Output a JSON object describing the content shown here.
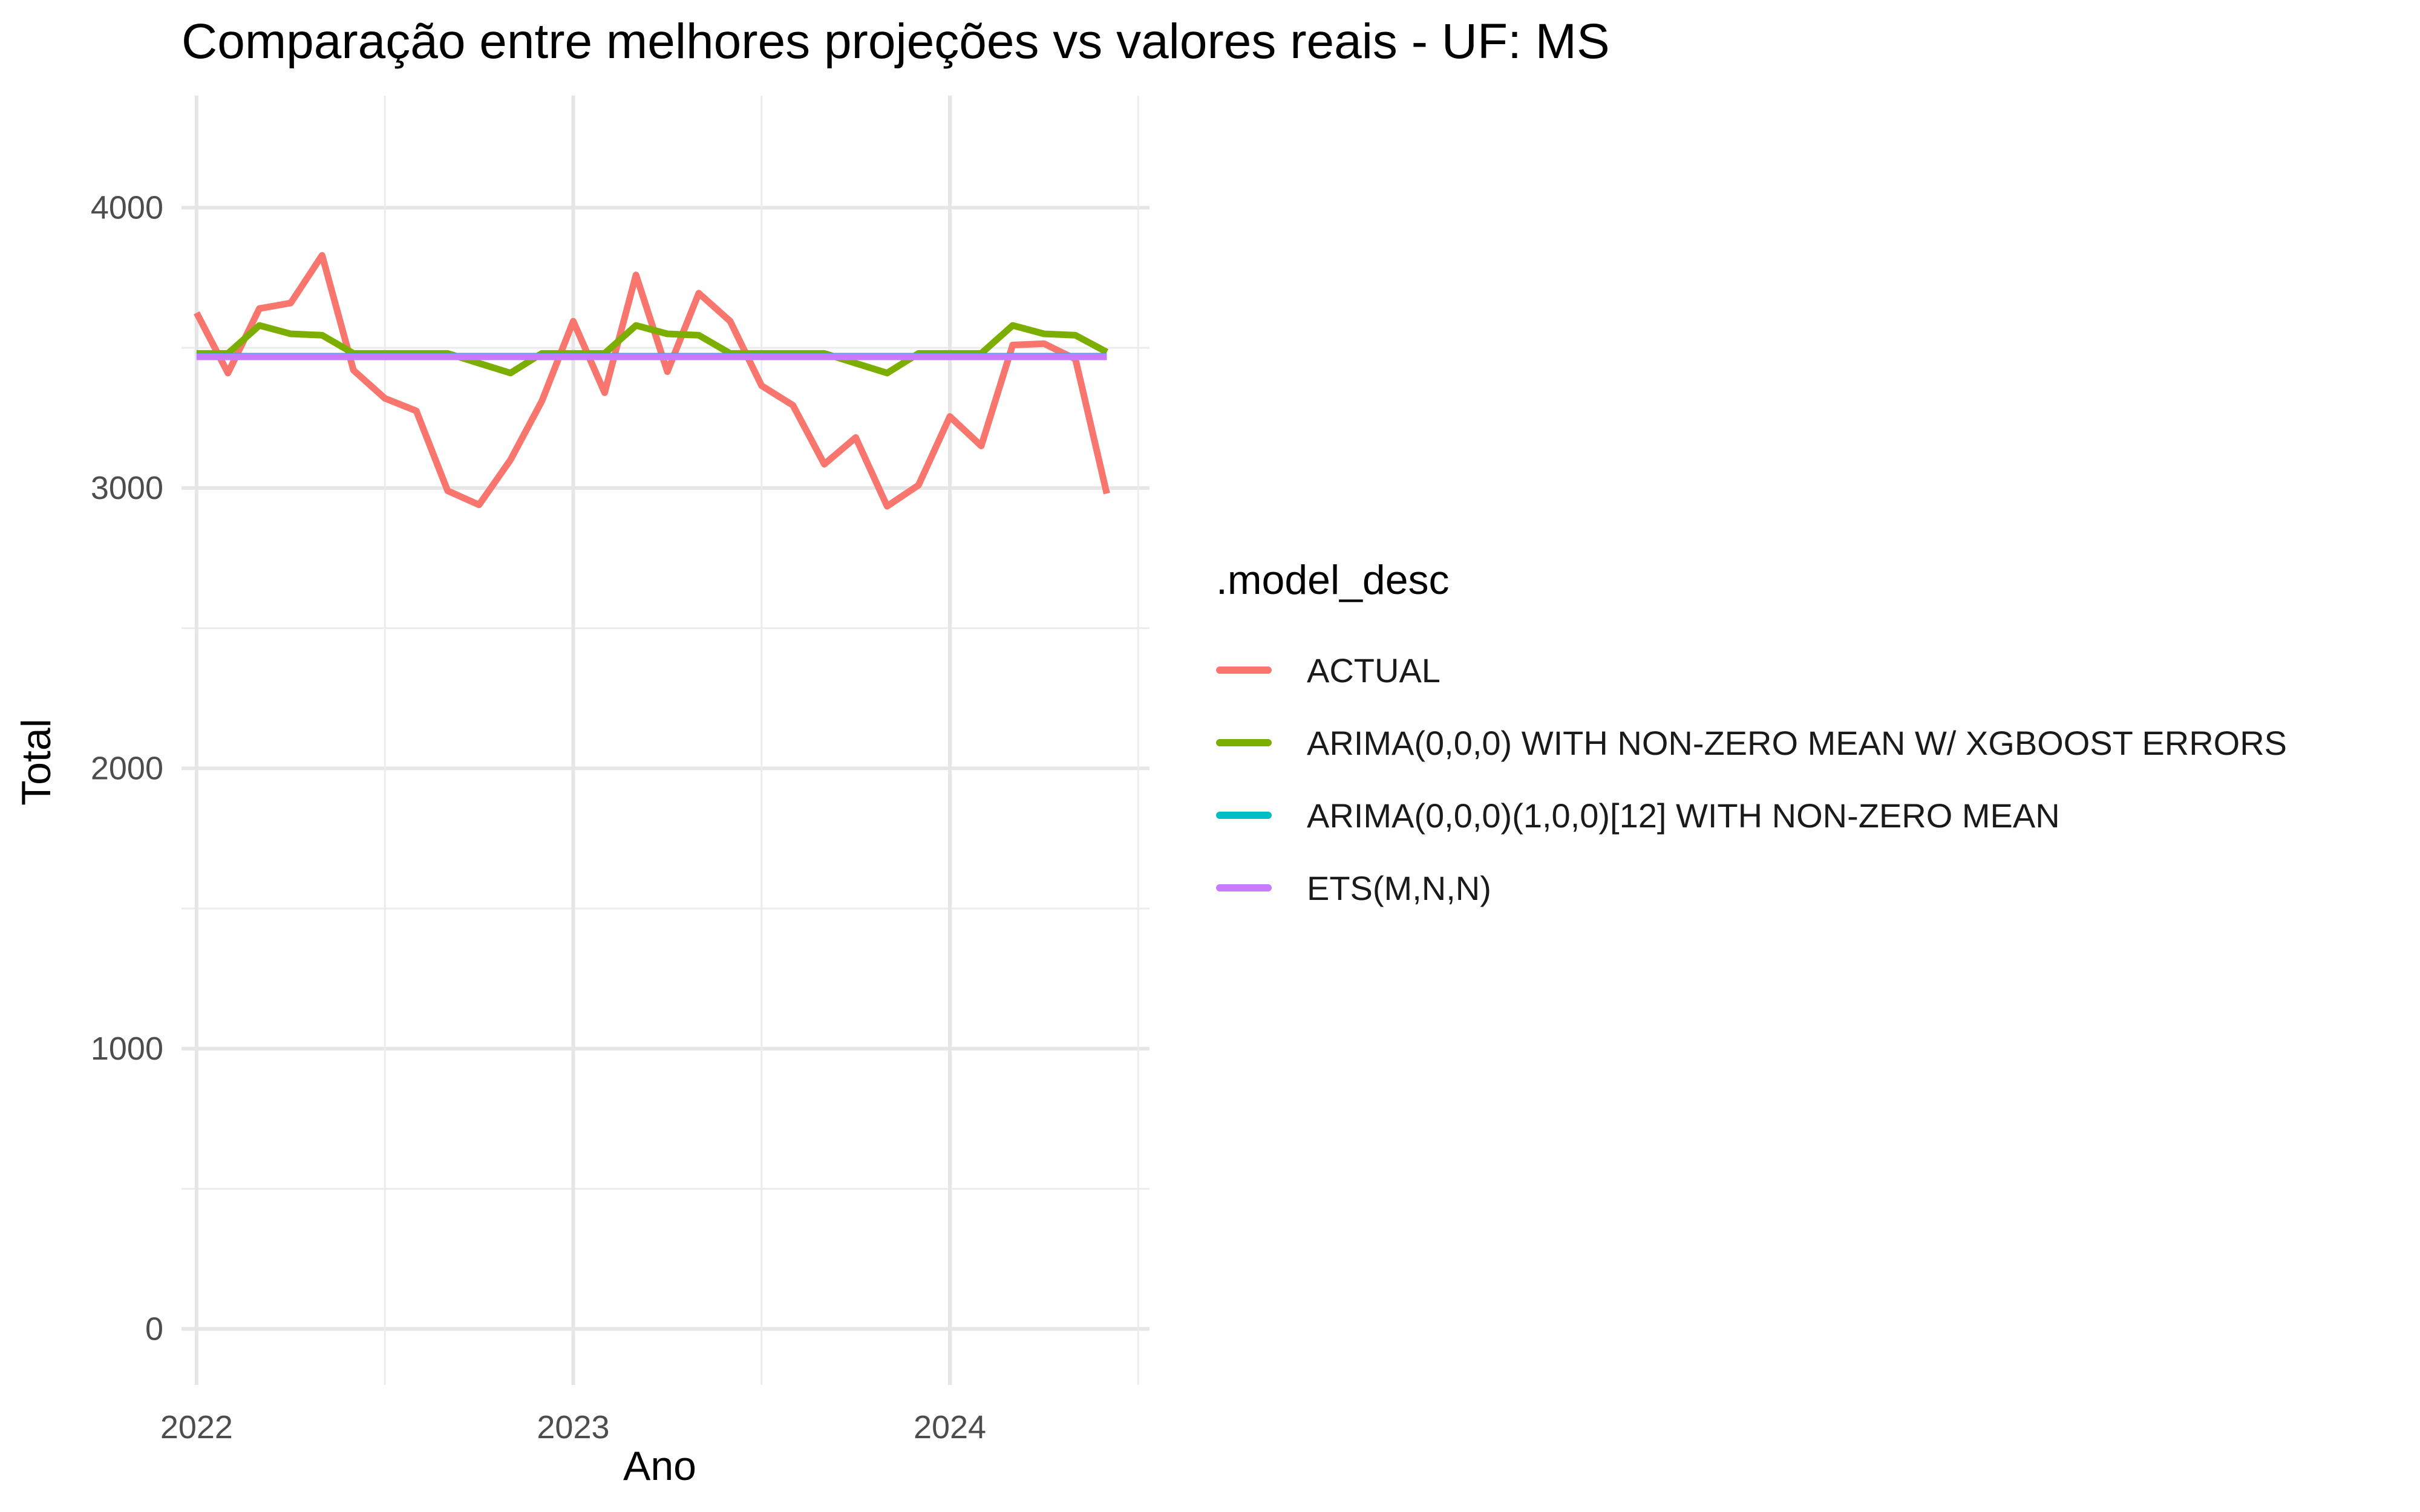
{
  "chart_data": {
    "type": "line",
    "title": "Comparação entre melhores projeções vs valores reais - UF: MS",
    "xlabel": "Ano",
    "ylabel": "Total",
    "x_ticks": [
      "2022",
      "2023",
      "2024"
    ],
    "y_ticks": [
      0,
      1000,
      2000,
      3000,
      4000
    ],
    "ylim": [
      -200,
      4400
    ],
    "xlim": [
      2021.96,
      2024.53
    ],
    "grid": true,
    "legend_title": ".model_desc",
    "legend_position": "right",
    "x": [
      "2022-01",
      "2022-02",
      "2022-03",
      "2022-04",
      "2022-05",
      "2022-06",
      "2022-07",
      "2022-08",
      "2022-09",
      "2022-10",
      "2022-11",
      "2022-12",
      "2023-01",
      "2023-02",
      "2023-03",
      "2023-04",
      "2023-05",
      "2023-06",
      "2023-07",
      "2023-08",
      "2023-09",
      "2023-10",
      "2023-11",
      "2023-12",
      "2024-01",
      "2024-02",
      "2024-03",
      "2024-04",
      "2024-05",
      "2024-06"
    ],
    "series": [
      {
        "name": "ACTUAL",
        "color": "#F8766D",
        "values": [
          3625,
          3410,
          3640,
          3660,
          3830,
          3420,
          3320,
          3275,
          2990,
          2940,
          3100,
          3310,
          3595,
          3340,
          3760,
          3415,
          3695,
          3595,
          3365,
          3295,
          3085,
          3180,
          2935,
          3010,
          3255,
          3150,
          3510,
          3515,
          3460,
          2980
        ]
      },
      {
        "name": "ARIMA(0,0,0) WITH NON-ZERO MEAN W/ XGBOOST ERRORS",
        "color": "#7CAE00",
        "values": [
          3480,
          3480,
          3580,
          3550,
          3545,
          3480,
          3480,
          3480,
          3480,
          3445,
          3410,
          3480,
          3480,
          3480,
          3580,
          3550,
          3545,
          3480,
          3480,
          3480,
          3480,
          3445,
          3410,
          3480,
          3480,
          3480,
          3580,
          3550,
          3545,
          3485
        ]
      },
      {
        "name": "ARIMA(0,0,0)(1,0,0)[12] WITH NON-ZERO MEAN",
        "color": "#00BFC4",
        "values": [
          3470,
          3470,
          3470,
          3470,
          3470,
          3470,
          3470,
          3470,
          3470,
          3470,
          3470,
          3470,
          3470,
          3470,
          3470,
          3470,
          3470,
          3470,
          3470,
          3470,
          3470,
          3470,
          3470,
          3470,
          3470,
          3470,
          3470,
          3470,
          3470,
          3470
        ]
      },
      {
        "name": "ETS(M,N,N)",
        "color": "#C77CFF",
        "values": [
          3468,
          3468,
          3468,
          3468,
          3468,
          3468,
          3468,
          3468,
          3468,
          3468,
          3468,
          3468,
          3468,
          3468,
          3468,
          3468,
          3468,
          3468,
          3468,
          3468,
          3468,
          3468,
          3468,
          3468,
          3468,
          3468,
          3468,
          3468,
          3468,
          3468
        ]
      }
    ]
  }
}
